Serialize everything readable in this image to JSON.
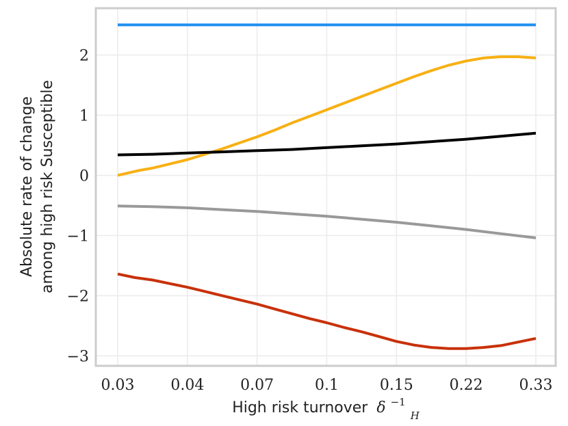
{
  "chart_data": {
    "type": "line",
    "title": "",
    "xlabel": "High risk turnover",
    "xlabel_symbol": "δ",
    "xlabel_sub": "H",
    "xlabel_sup": "−1",
    "ylabel_line1": "Absolute rate of change",
    "ylabel_line2": "among high risk Susceptible",
    "x_tick_labels": [
      "0.03",
      "0.04",
      "0.07",
      "0.1",
      "0.15",
      "0.22",
      "0.33"
    ],
    "xlim": [
      0,
      6
    ],
    "y_ticks": [
      -3,
      -2,
      -1,
      0,
      1,
      2
    ],
    "y_tick_labels": [
      "−3",
      "−2",
      "−1",
      "0",
      "1",
      "2"
    ],
    "ylim": [
      -3.2,
      2.8
    ],
    "grid": true,
    "series": [
      {
        "name": "blue",
        "color": "#1f8ff0",
        "x": [
          0,
          6
        ],
        "y": [
          2.5,
          2.5
        ]
      },
      {
        "name": "orange",
        "color": "#f7b014",
        "x": [
          0,
          0.3,
          0.5,
          0.75,
          1,
          1.25,
          1.5,
          1.75,
          2,
          2.25,
          2.5,
          2.75,
          3,
          3.25,
          3.5,
          3.75,
          4,
          4.25,
          4.5,
          4.75,
          5,
          5.25,
          5.5,
          5.75,
          6
        ],
        "y": [
          0.0,
          0.08,
          0.12,
          0.19,
          0.26,
          0.35,
          0.44,
          0.54,
          0.64,
          0.75,
          0.87,
          0.98,
          1.09,
          1.2,
          1.31,
          1.42,
          1.53,
          1.64,
          1.74,
          1.83,
          1.9,
          1.95,
          1.97,
          1.97,
          1.95
        ]
      },
      {
        "name": "black",
        "color": "#000000",
        "x": [
          0,
          0.5,
          1,
          1.5,
          2,
          2.5,
          3,
          3.5,
          4,
          4.5,
          5,
          5.5,
          6
        ],
        "y": [
          0.34,
          0.35,
          0.37,
          0.39,
          0.41,
          0.43,
          0.46,
          0.49,
          0.52,
          0.56,
          0.6,
          0.65,
          0.7
        ]
      },
      {
        "name": "gray",
        "color": "#999999",
        "x": [
          0,
          0.5,
          1,
          1.5,
          2,
          2.5,
          3,
          3.5,
          4,
          4.5,
          5,
          5.5,
          6
        ],
        "y": [
          -0.51,
          -0.52,
          -0.54,
          -0.57,
          -0.6,
          -0.64,
          -0.68,
          -0.73,
          -0.78,
          -0.84,
          -0.9,
          -0.97,
          -1.04
        ]
      },
      {
        "name": "red",
        "color": "#c8310a",
        "x": [
          0,
          0.25,
          0.5,
          0.75,
          1,
          1.25,
          1.5,
          1.75,
          2,
          2.25,
          2.5,
          2.75,
          3,
          3.25,
          3.5,
          3.75,
          4,
          4.25,
          4.5,
          4.75,
          5,
          5.25,
          5.5,
          5.75,
          6
        ],
        "y": [
          -1.64,
          -1.7,
          -1.74,
          -1.8,
          -1.86,
          -1.93,
          -2.0,
          -2.07,
          -2.14,
          -2.22,
          -2.3,
          -2.38,
          -2.45,
          -2.53,
          -2.6,
          -2.68,
          -2.76,
          -2.82,
          -2.86,
          -2.88,
          -2.88,
          -2.86,
          -2.83,
          -2.77,
          -2.71
        ]
      }
    ]
  }
}
